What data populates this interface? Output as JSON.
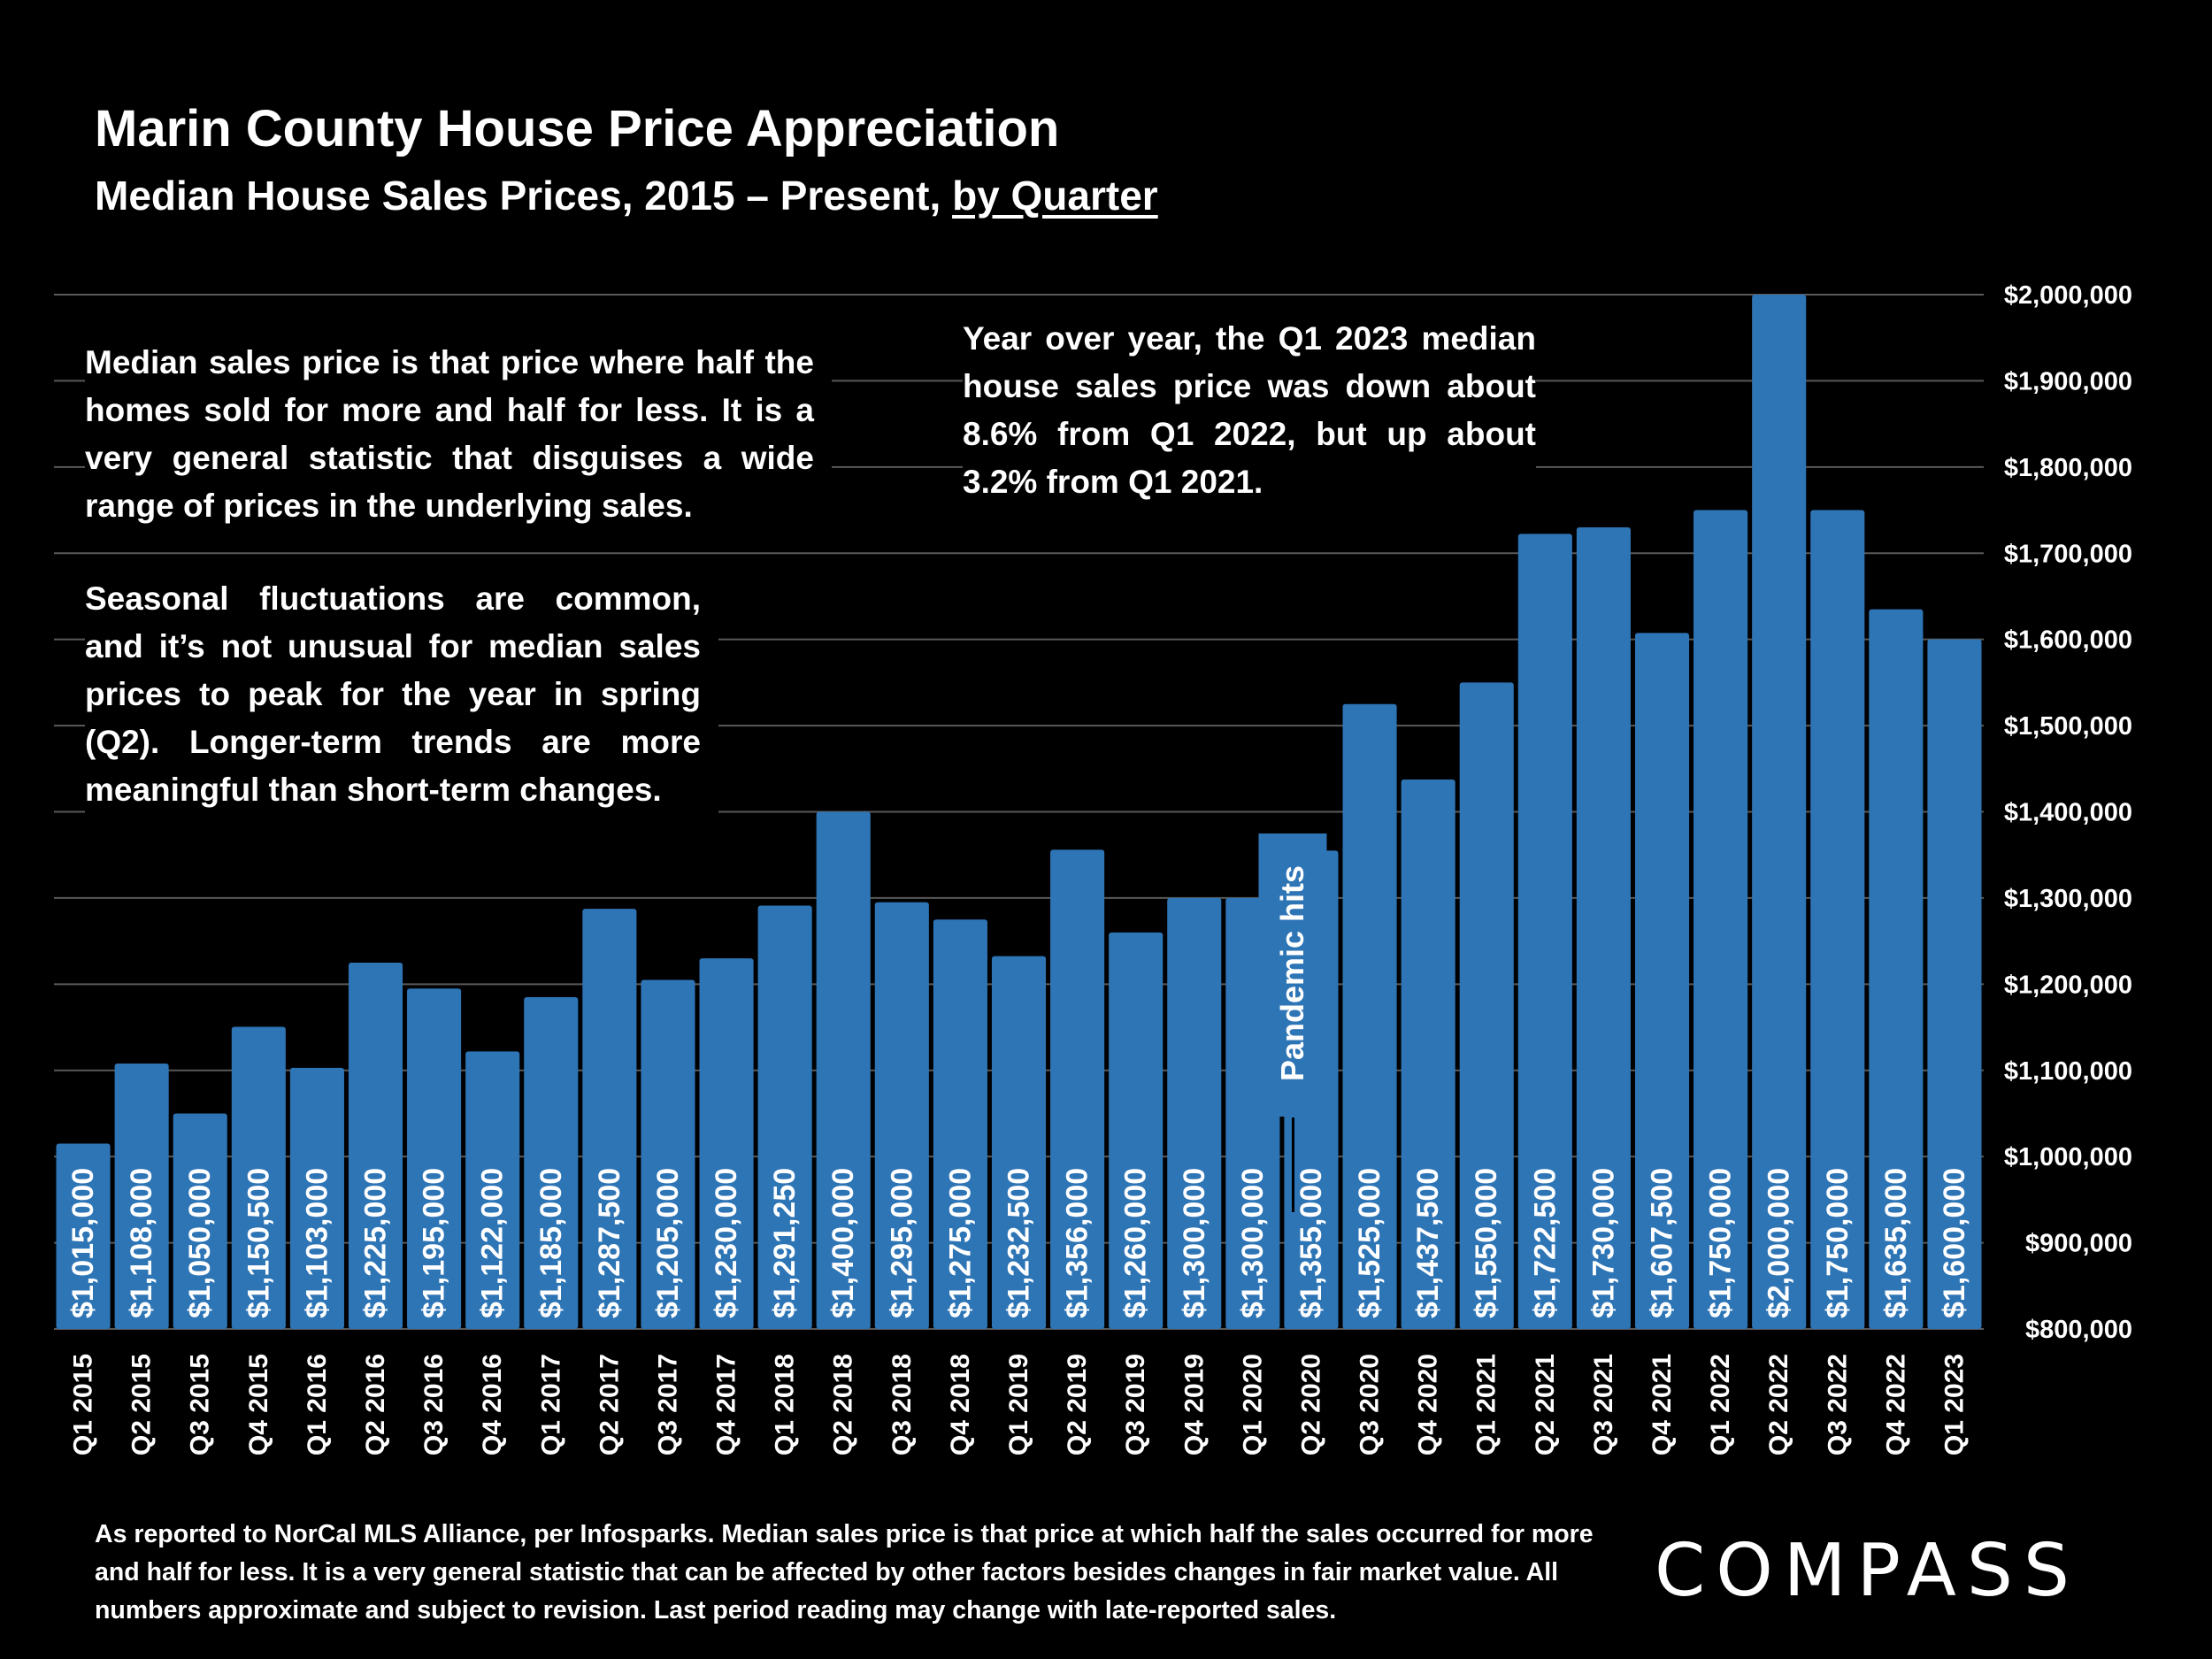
{
  "header": {
    "title": "Marin County House Price Appreciation",
    "subtitle_prefix": "Median House Sales Prices, 2015 – Present, ",
    "subtitle_emphasis": "by Quarter"
  },
  "notes": {
    "definition": "Median sales price is that price where half the homes sold for more and half for less. It is a very general statistic that disguises a wide range of prices in the underlying sales.",
    "yoy": "Year over year, the Q1 2023 median house sales price was down about 8.6% from Q1 2022, but up about 3.2% from Q1 2021.",
    "seasonal": "Seasonal fluctuations are common, and it’s not unusual for median sales prices to peak for the year in spring (Q2). Longer-term trends are more meaningful than short-term changes."
  },
  "footer": {
    "source": "As reported to NorCal MLS Alliance, per Infosparks. Median sales price is that price at which half the sales occurred for more and half for less. It is a very general statistic that can be affected by other factors besides changes in fair market value. All numbers approximate and subject to revision. Last period reading may change with late-reported sales.",
    "logo": "COMPASS"
  },
  "colors": {
    "bar": "#2E75B6",
    "grid": "#595959",
    "background": "#000000",
    "text": "#FFFFFF"
  },
  "chart_data": {
    "type": "bar",
    "title": "Marin County House Price Appreciation",
    "xlabel": "",
    "ylabel": "Median House Sales Price",
    "ylim": [
      800000,
      2000000
    ],
    "yticks": [
      800000,
      900000,
      1000000,
      1100000,
      1200000,
      1300000,
      1400000,
      1500000,
      1600000,
      1700000,
      1800000,
      1900000,
      2000000
    ],
    "ytick_labels": [
      "$800,000",
      "$900,000",
      "$1,000,000",
      "$1,100,000",
      "$1,200,000",
      "$1,300,000",
      "$1,400,000",
      "$1,500,000",
      "$1,600,000",
      "$1,700,000",
      "$1,800,000",
      "$1,900,000",
      "$2,000,000"
    ],
    "y_axis_position": "right",
    "grid": true,
    "categories": [
      "Q1 2015",
      "Q2 2015",
      "Q3 2015",
      "Q4 2015",
      "Q1 2016",
      "Q2 2016",
      "Q3 2016",
      "Q4 2016",
      "Q1 2017",
      "Q2 2017",
      "Q3 2017",
      "Q4 2017",
      "Q1 2018",
      "Q2 2018",
      "Q3 2018",
      "Q4 2018",
      "Q1 2019",
      "Q2 2019",
      "Q3 2019",
      "Q4 2019",
      "Q1 2020",
      "Q2 2020",
      "Q3 2020",
      "Q4 2020",
      "Q1 2021",
      "Q2 2021",
      "Q3 2021",
      "Q4 2021",
      "Q1 2022",
      "Q2 2022",
      "Q3 2022",
      "Q4 2022",
      "Q1 2023"
    ],
    "values": [
      1015000,
      1108000,
      1050000,
      1150500,
      1103000,
      1225000,
      1195000,
      1122000,
      1185000,
      1287500,
      1205000,
      1230000,
      1291250,
      1400000,
      1295000,
      1275000,
      1232500,
      1356000,
      1260000,
      1300000,
      1300000,
      1355000,
      1525000,
      1437500,
      1550000,
      1722500,
      1730000,
      1607500,
      1750000,
      2000000,
      1750000,
      1635000,
      1600000
    ],
    "data_labels": [
      "$1,015,000",
      "$1,108,000",
      "$1,050,000",
      "$1,150,500",
      "$1,103,000",
      "$1,225,000",
      "$1,195,000",
      "$1,122,000",
      "$1,185,000",
      "$1,287,500",
      "$1,205,000",
      "$1,230,000",
      "$1,291,250",
      "$1,400,000",
      "$1,295,000",
      "$1,275,000",
      "$1,232,500",
      "$1,356,000",
      "$1,260,000",
      "$1,300,000",
      "$1,300,000",
      "$1,355,000",
      "$1,525,000",
      "$1,437,500",
      "$1,550,000",
      "$1,722,500",
      "$1,730,000",
      "$1,607,500",
      "$1,750,000",
      "$2,000,000",
      "$1,750,000",
      "$1,635,000",
      "$1,600,000"
    ],
    "annotations": [
      {
        "text": "Pandemic hits",
        "category": "Q1 2020"
      }
    ]
  }
}
